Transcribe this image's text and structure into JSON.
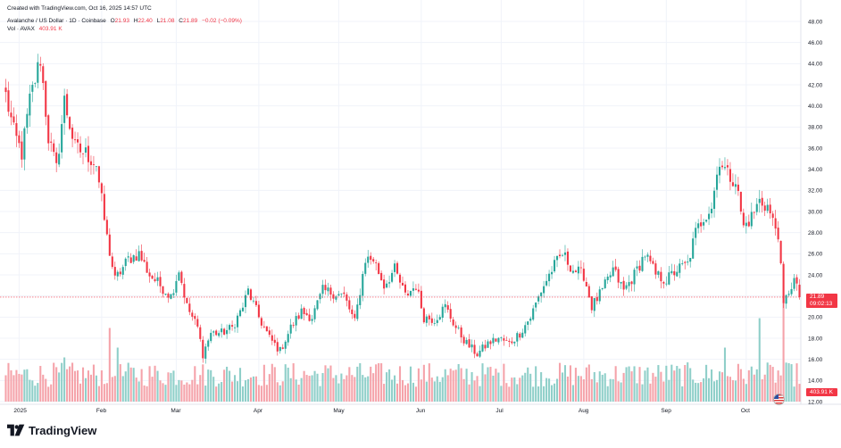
{
  "header": {
    "created": "Created with TradingView.com, Oct 16, 2025 14:57 UTC",
    "symbol": "Avalanche / US Dollar · 1D · Coinbase",
    "ohlc": [
      {
        "label": "O",
        "value": "21.93"
      },
      {
        "label": "H",
        "value": "22.40"
      },
      {
        "label": "L",
        "value": "21.08"
      },
      {
        "label": "C",
        "value": "21.89"
      }
    ],
    "change": "−0.02 (−0.09%)",
    "volume_label": "Vol · AVAX",
    "volume_value": "403.91 K"
  },
  "price_tag": {
    "price": "21.89",
    "countdown": "09:02:13"
  },
  "volume_tag": "403.91 K",
  "brand": "TradingView",
  "colors": {
    "up": "#26a69a",
    "down": "#f23645",
    "vol_up": "#8fcfc9",
    "vol_down": "#f5a3aa",
    "grid": "#f0f3fa",
    "text": "#131722"
  },
  "chart_data": {
    "type": "candlestick",
    "y_axis": {
      "min": 12,
      "max": 48,
      "ticks": [
        "12.00",
        "14.00",
        "16.00",
        "18.00",
        "20.00",
        "22.00",
        "24.00",
        "26.00",
        "28.00",
        "30.00",
        "32.00",
        "34.00",
        "36.00",
        "38.00",
        "40.00",
        "42.00",
        "44.00",
        "46.00",
        "48.00"
      ]
    },
    "x_axis": {
      "labels": [
        {
          "label": "2025",
          "index": 5
        },
        {
          "label": "Feb",
          "index": 36
        },
        {
          "label": "Mar",
          "index": 64
        },
        {
          "label": "Apr",
          "index": 95
        },
        {
          "label": "May",
          "index": 125
        },
        {
          "label": "Jun",
          "index": 156
        },
        {
          "label": "Jul",
          "index": 186
        },
        {
          "label": "Aug",
          "index": 217
        },
        {
          "label": "Sep",
          "index": 248
        },
        {
          "label": "Oct",
          "index": 278
        }
      ]
    },
    "current_price": 21.89,
    "keypoints": [
      [
        0,
        41.0
      ],
      [
        3,
        37.5
      ],
      [
        6,
        35.5
      ],
      [
        9,
        40.5
      ],
      [
        13,
        44.5
      ],
      [
        16,
        37.0
      ],
      [
        19,
        34.0
      ],
      [
        22,
        40.5
      ],
      [
        26,
        36.0
      ],
      [
        30,
        35.5
      ],
      [
        34,
        34.5
      ],
      [
        38,
        27.5
      ],
      [
        41,
        23.5
      ],
      [
        46,
        25.5
      ],
      [
        50,
        26.0
      ],
      [
        54,
        24.0
      ],
      [
        58,
        23.0
      ],
      [
        62,
        22.0
      ],
      [
        65,
        24.5
      ],
      [
        68,
        21.0
      ],
      [
        72,
        19.0
      ],
      [
        74,
        16.5
      ],
      [
        77,
        18.5
      ],
      [
        81,
        18.5
      ],
      [
        85,
        19.0
      ],
      [
        89,
        21.0
      ],
      [
        91,
        22.5
      ],
      [
        95,
        20.0
      ],
      [
        99,
        18.0
      ],
      [
        103,
        16.8
      ],
      [
        107,
        19.0
      ],
      [
        111,
        20.5
      ],
      [
        115,
        20.0
      ],
      [
        119,
        22.5
      ],
      [
        123,
        22.3
      ],
      [
        127,
        22.0
      ],
      [
        131,
        19.5
      ],
      [
        135,
        25.5
      ],
      [
        138,
        25.5
      ],
      [
        142,
        23.0
      ],
      [
        146,
        24.5
      ],
      [
        150,
        22.0
      ],
      [
        154,
        23.0
      ],
      [
        157,
        20.0
      ],
      [
        161,
        19.8
      ],
      [
        165,
        21.0
      ],
      [
        169,
        19.0
      ],
      [
        173,
        17.5
      ],
      [
        177,
        16.5
      ],
      [
        181,
        17.5
      ],
      [
        185,
        18.0
      ],
      [
        189,
        17.5
      ],
      [
        193,
        18.5
      ],
      [
        197,
        20.0
      ],
      [
        201,
        22.5
      ],
      [
        205,
        24.5
      ],
      [
        209,
        26.0
      ],
      [
        213,
        24.5
      ],
      [
        217,
        24.0
      ],
      [
        220,
        21.0
      ],
      [
        224,
        22.5
      ],
      [
        228,
        24.5
      ],
      [
        232,
        22.5
      ],
      [
        236,
        24.0
      ],
      [
        240,
        26.0
      ],
      [
        244,
        24.0
      ],
      [
        248,
        23.5
      ],
      [
        252,
        24.5
      ],
      [
        256,
        25.0
      ],
      [
        259,
        28.0
      ],
      [
        262,
        29.5
      ],
      [
        265,
        30.5
      ],
      [
        268,
        35.0
      ],
      [
        271,
        33.5
      ],
      [
        274,
        33.0
      ],
      [
        277,
        28.5
      ],
      [
        280,
        29.5
      ],
      [
        283,
        31.0
      ],
      [
        286,
        30.5
      ],
      [
        288,
        29.0
      ],
      [
        290,
        28.0
      ],
      [
        292,
        21.0
      ],
      [
        294,
        22.5
      ],
      [
        296,
        23.5
      ],
      [
        298,
        21.89
      ]
    ],
    "volume_spikes": [
      {
        "index": 39,
        "value": 0.75
      },
      {
        "index": 292,
        "value": 1.0
      },
      {
        "index": 283,
        "value": 0.85
      },
      {
        "index": 22,
        "value": 0.45
      },
      {
        "index": 42,
        "value": 0.55
      },
      {
        "index": 270,
        "value": 0.55
      }
    ]
  }
}
